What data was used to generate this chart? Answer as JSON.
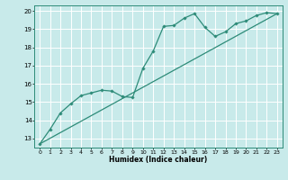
{
  "xlabel": "Humidex (Indice chaleur)",
  "ylabel": "",
  "bg_color": "#c8eaea",
  "grid_color": "#ffffff",
  "line_color": "#2d8b78",
  "xlim": [
    -0.5,
    23.5
  ],
  "ylim": [
    12.5,
    20.3
  ],
  "xticks": [
    0,
    1,
    2,
    3,
    4,
    5,
    6,
    7,
    8,
    9,
    10,
    11,
    12,
    13,
    14,
    15,
    16,
    17,
    18,
    19,
    20,
    21,
    22,
    23
  ],
  "yticks": [
    13,
    14,
    15,
    16,
    17,
    18,
    19,
    20
  ],
  "trend_x": [
    0,
    23
  ],
  "trend_y": [
    12.7,
    19.85
  ],
  "data_x": [
    0,
    1,
    2,
    3,
    4,
    5,
    6,
    7,
    8,
    9,
    10,
    11,
    12,
    13,
    14,
    15,
    16,
    17,
    18,
    19,
    20,
    21,
    22,
    23
  ],
  "data_y": [
    12.7,
    13.5,
    14.4,
    14.9,
    15.35,
    15.5,
    15.65,
    15.6,
    15.3,
    15.25,
    16.85,
    17.8,
    19.15,
    19.2,
    19.6,
    19.85,
    19.1,
    18.6,
    18.85,
    19.3,
    19.45,
    19.75,
    19.9,
    19.85
  ]
}
